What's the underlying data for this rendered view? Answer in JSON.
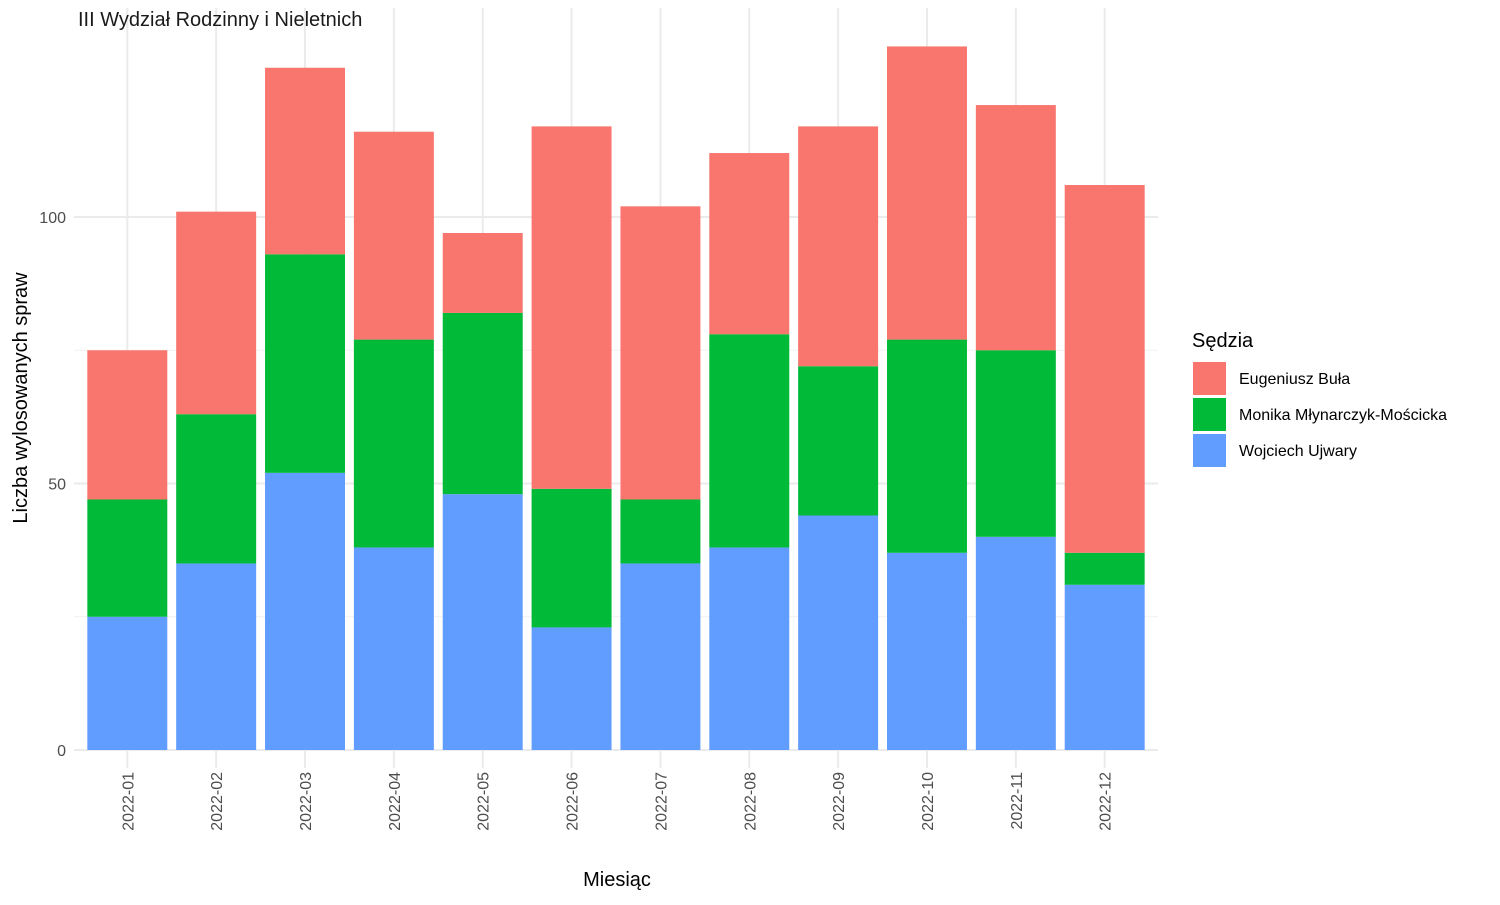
{
  "chart_data": {
    "type": "bar",
    "stacked": true,
    "title": "III Wydział Rodzinny i Nieletnich",
    "xlabel": "Miesiąc",
    "ylabel": "Liczba wylosowanych spraw",
    "ylim": [
      0,
      138
    ],
    "yticks": [
      0,
      50,
      100
    ],
    "grid": true,
    "legend": {
      "title": "Sędzia",
      "placement": "right"
    },
    "categories": [
      "2022-01",
      "2022-02",
      "2022-03",
      "2022-04",
      "2022-05",
      "2022-06",
      "2022-07",
      "2022-08",
      "2022-09",
      "2022-10",
      "2022-11",
      "2022-12"
    ],
    "series": [
      {
        "name": "Wojciech Ujwary",
        "color": "#619CFF",
        "values": [
          25,
          35,
          52,
          38,
          48,
          23,
          35,
          38,
          44,
          37,
          40,
          31
        ]
      },
      {
        "name": "Monika Młynarczyk-Mościcka",
        "color": "#00BA38",
        "values": [
          22,
          28,
          41,
          39,
          34,
          26,
          12,
          40,
          28,
          40,
          35,
          6
        ]
      },
      {
        "name": "Eugeniusz Buła",
        "color": "#F8766D",
        "values": [
          28,
          38,
          35,
          39,
          15,
          68,
          55,
          34,
          45,
          55,
          46,
          69
        ]
      }
    ],
    "legend_order": [
      "Eugeniusz Buła",
      "Monika Młynarczyk-Mościcka",
      "Wojciech Ujwary"
    ]
  }
}
